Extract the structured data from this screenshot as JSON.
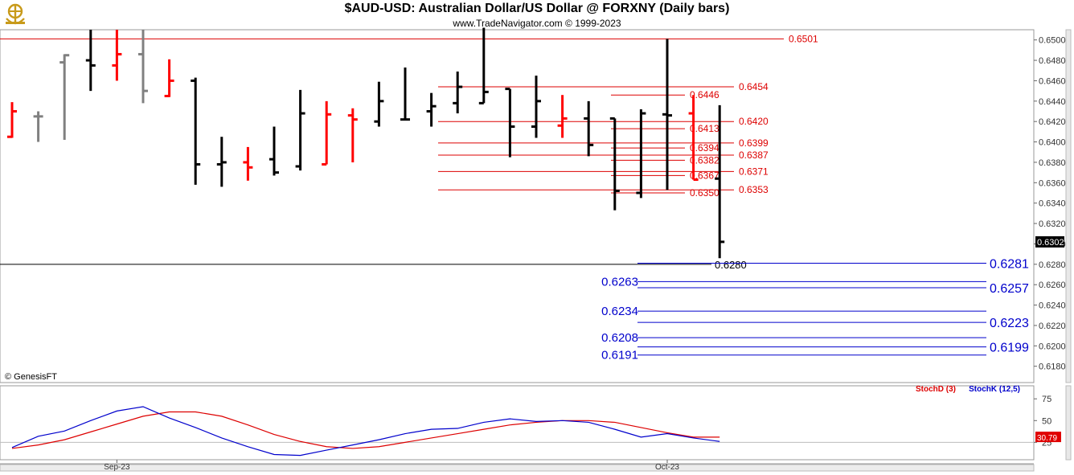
{
  "header": {
    "title": "$AUD-USD:  Australian Dollar/US Dollar @ FORXNY  (Daily bars)",
    "subtitle": "www.TradeNavigator.com © 1999-2023"
  },
  "credit": "© GenesisFT",
  "colors": {
    "up": "#000000",
    "down": "#ff0000",
    "neutral": "#808080",
    "level_red": "#dd0000",
    "level_blue": "#0000cc",
    "stochD": "#dd0000",
    "stochK": "#0000cc"
  },
  "chart_data": [
    {
      "type": "bar",
      "subtype": "ohlc",
      "title": "$AUD-USD:  Australian Dollar/US Dollar @ FORXNY  (Daily bars)",
      "ylim": [
        0.6164,
        0.651
      ],
      "y_ticks": [
        "0.6500",
        "0.6480",
        "0.6460",
        "0.6440",
        "0.6420",
        "0.6400",
        "0.6380",
        "0.6360",
        "0.6340",
        "0.6320",
        "0.6300",
        "0.6280",
        "0.6260",
        "0.6240",
        "0.6220",
        "0.6200",
        "0.6180"
      ],
      "last_price_label": "0.6302",
      "x_ticks": [
        {
          "label": "Sep-23",
          "bar": 4
        },
        {
          "label": "Oct-23",
          "bar": 25
        }
      ],
      "bars": [
        {
          "o": 0.6405,
          "h": 0.6439,
          "l": 0.6404,
          "c": 0.643,
          "color": "down"
        },
        {
          "o": 0.6425,
          "h": 0.643,
          "l": 0.64,
          "c": 0.6425,
          "color": "neutral"
        },
        {
          "o": 0.6478,
          "h": 0.6486,
          "l": 0.6402,
          "c": 0.6485,
          "color": "neutral"
        },
        {
          "o": 0.648,
          "h": 0.651,
          "l": 0.645,
          "c": 0.6475,
          "color": "up"
        },
        {
          "o": 0.6475,
          "h": 0.651,
          "l": 0.646,
          "c": 0.6486,
          "color": "down"
        },
        {
          "o": 0.6486,
          "h": 0.651,
          "l": 0.6438,
          "c": 0.645,
          "color": "neutral"
        },
        {
          "o": 0.6445,
          "h": 0.6481,
          "l": 0.6444,
          "c": 0.646,
          "color": "down"
        },
        {
          "o": 0.646,
          "h": 0.6463,
          "l": 0.6358,
          "c": 0.6378,
          "color": "up"
        },
        {
          "o": 0.6378,
          "h": 0.6405,
          "l": 0.6356,
          "c": 0.638,
          "color": "up"
        },
        {
          "o": 0.638,
          "h": 0.6395,
          "l": 0.6362,
          "c": 0.6375,
          "color": "down"
        },
        {
          "o": 0.6383,
          "h": 0.6415,
          "l": 0.6367,
          "c": 0.637,
          "color": "up"
        },
        {
          "o": 0.6376,
          "h": 0.6451,
          "l": 0.6372,
          "c": 0.6428,
          "color": "up"
        },
        {
          "o": 0.6378,
          "h": 0.644,
          "l": 0.6378,
          "c": 0.6427,
          "color": "down"
        },
        {
          "o": 0.6426,
          "h": 0.6433,
          "l": 0.638,
          "c": 0.6422,
          "color": "down"
        },
        {
          "o": 0.642,
          "h": 0.6459,
          "l": 0.6415,
          "c": 0.644,
          "color": "up"
        },
        {
          "o": 0.6422,
          "h": 0.6473,
          "l": 0.6422,
          "c": 0.6422,
          "color": "up"
        },
        {
          "o": 0.643,
          "h": 0.6448,
          "l": 0.6415,
          "c": 0.6435,
          "color": "up"
        },
        {
          "o": 0.6438,
          "h": 0.6469,
          "l": 0.6428,
          "c": 0.6454,
          "color": "up"
        },
        {
          "o": 0.6438,
          "h": 0.6512,
          "l": 0.6438,
          "c": 0.6449,
          "color": "up"
        },
        {
          "o": 0.6452,
          "h": 0.6452,
          "l": 0.6385,
          "c": 0.6415,
          "color": "up"
        },
        {
          "o": 0.6415,
          "h": 0.6465,
          "l": 0.6404,
          "c": 0.644,
          "color": "up"
        },
        {
          "o": 0.6416,
          "h": 0.6446,
          "l": 0.6404,
          "c": 0.6423,
          "color": "down"
        },
        {
          "o": 0.6423,
          "h": 0.644,
          "l": 0.6386,
          "c": 0.6397,
          "color": "up"
        },
        {
          "o": 0.6423,
          "h": 0.6423,
          "l": 0.6333,
          "c": 0.6352,
          "color": "up"
        },
        {
          "o": 0.635,
          "h": 0.6432,
          "l": 0.6345,
          "c": 0.6428,
          "color": "up"
        },
        {
          "o": 0.6427,
          "h": 0.6501,
          "l": 0.6353,
          "c": 0.6426,
          "color": "up"
        },
        {
          "o": 0.6428,
          "h": 0.6446,
          "l": 0.6363,
          "c": 0.6363,
          "color": "down"
        },
        {
          "o": 0.6364,
          "h": 0.6436,
          "l": 0.6286,
          "c": 0.6302,
          "color": "up"
        }
      ],
      "levels_red": [
        {
          "label": "0.6501",
          "value": 0.6501
        },
        {
          "label": "0.6454",
          "value": 0.6454
        },
        {
          "label": "0.6446",
          "value": 0.6446
        },
        {
          "label": "0.6420",
          "value": 0.642
        },
        {
          "label": "0.6413",
          "value": 0.6413
        },
        {
          "label": "0.6399",
          "value": 0.6399
        },
        {
          "label": "0.6394",
          "value": 0.6394
        },
        {
          "label": "0.6387",
          "value": 0.6387
        },
        {
          "label": "0.6382",
          "value": 0.6382
        },
        {
          "label": "0.6371",
          "value": 0.6371
        },
        {
          "label": "0.6367",
          "value": 0.6367
        },
        {
          "label": "0.6353",
          "value": 0.6353
        },
        {
          "label": "0.6350",
          "value": 0.635
        }
      ],
      "level_black": {
        "label": "0.6280",
        "value": 0.628
      },
      "levels_blue": [
        {
          "label": "0.6281",
          "value": 0.6281
        },
        {
          "label": "0.6263",
          "value": 0.6263
        },
        {
          "label": "0.6257",
          "value": 0.6257
        },
        {
          "label": "0.6234",
          "value": 0.6234
        },
        {
          "label": "0.6223",
          "value": 0.6223
        },
        {
          "label": "0.6208",
          "value": 0.6208
        },
        {
          "label": "0.6199",
          "value": 0.6199
        },
        {
          "label": "0.6191",
          "value": 0.6191
        }
      ]
    },
    {
      "type": "line",
      "title": "",
      "ylim": [
        5,
        90
      ],
      "y_ticks": [
        "75",
        "50",
        "25"
      ],
      "last_value_label": "30.79",
      "series": [
        {
          "name": "StochD (3)",
          "color": "#dd0000",
          "values": [
            18,
            22,
            28,
            37,
            46,
            55,
            60,
            60,
            55,
            45,
            34,
            26,
            20,
            18,
            20,
            25,
            30,
            35,
            40,
            45,
            48,
            50,
            50,
            48,
            42,
            36,
            31,
            31
          ]
        },
        {
          "name": "StochK (12,5)",
          "color": "#0000cc",
          "values": [
            19,
            32,
            38,
            50,
            61,
            66,
            53,
            42,
            30,
            20,
            11,
            10,
            16,
            22,
            28,
            35,
            40,
            41,
            48,
            52,
            49,
            50,
            48,
            40,
            31,
            35,
            30,
            26
          ]
        }
      ]
    }
  ]
}
